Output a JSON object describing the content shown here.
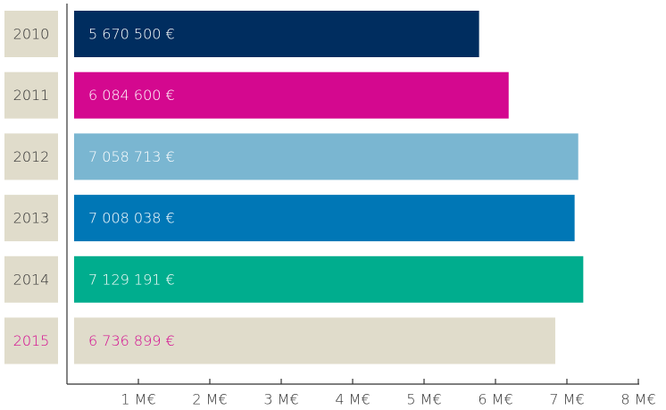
{
  "chart_data": {
    "type": "bar",
    "orientation": "horizontal",
    "categories": [
      "2010",
      "2011",
      "2012",
      "2013",
      "2014",
      "2015"
    ],
    "values": [
      5670500,
      6084600,
      7058713,
      7008038,
      7129191,
      6736899
    ],
    "value_labels": [
      "5 670 500 €",
      "6 084 600 €",
      "7 058 713 €",
      "7 008 038 €",
      "7 129 191 €",
      "6 736 899 €"
    ],
    "colors": [
      "#002d5f",
      "#d4088f",
      "#7ab6d1",
      "#0077b6",
      "#00ad8e",
      "#e0dccb"
    ],
    "label_colors": [
      "#ffffff",
      "#ffffff",
      "#ffffff",
      "#ffffff",
      "#ffffff",
      "#d4088f"
    ],
    "category_label_colors": [
      "#333333",
      "#333333",
      "#333333",
      "#333333",
      "#333333",
      "#d4088f"
    ],
    "xlim": [
      0,
      8000000
    ],
    "xticks": [
      {
        "value": 1000000,
        "label": "1 M€"
      },
      {
        "value": 2000000,
        "label": "2 M€"
      },
      {
        "value": 3000000,
        "label": "3 M€"
      },
      {
        "value": 4000000,
        "label": "4 M€"
      },
      {
        "value": 5000000,
        "label": "5 M€"
      },
      {
        "value": 6000000,
        "label": "6 M€"
      },
      {
        "value": 7000000,
        "label": "7 M€"
      },
      {
        "value": 8000000,
        "label": "8 M€"
      }
    ]
  }
}
